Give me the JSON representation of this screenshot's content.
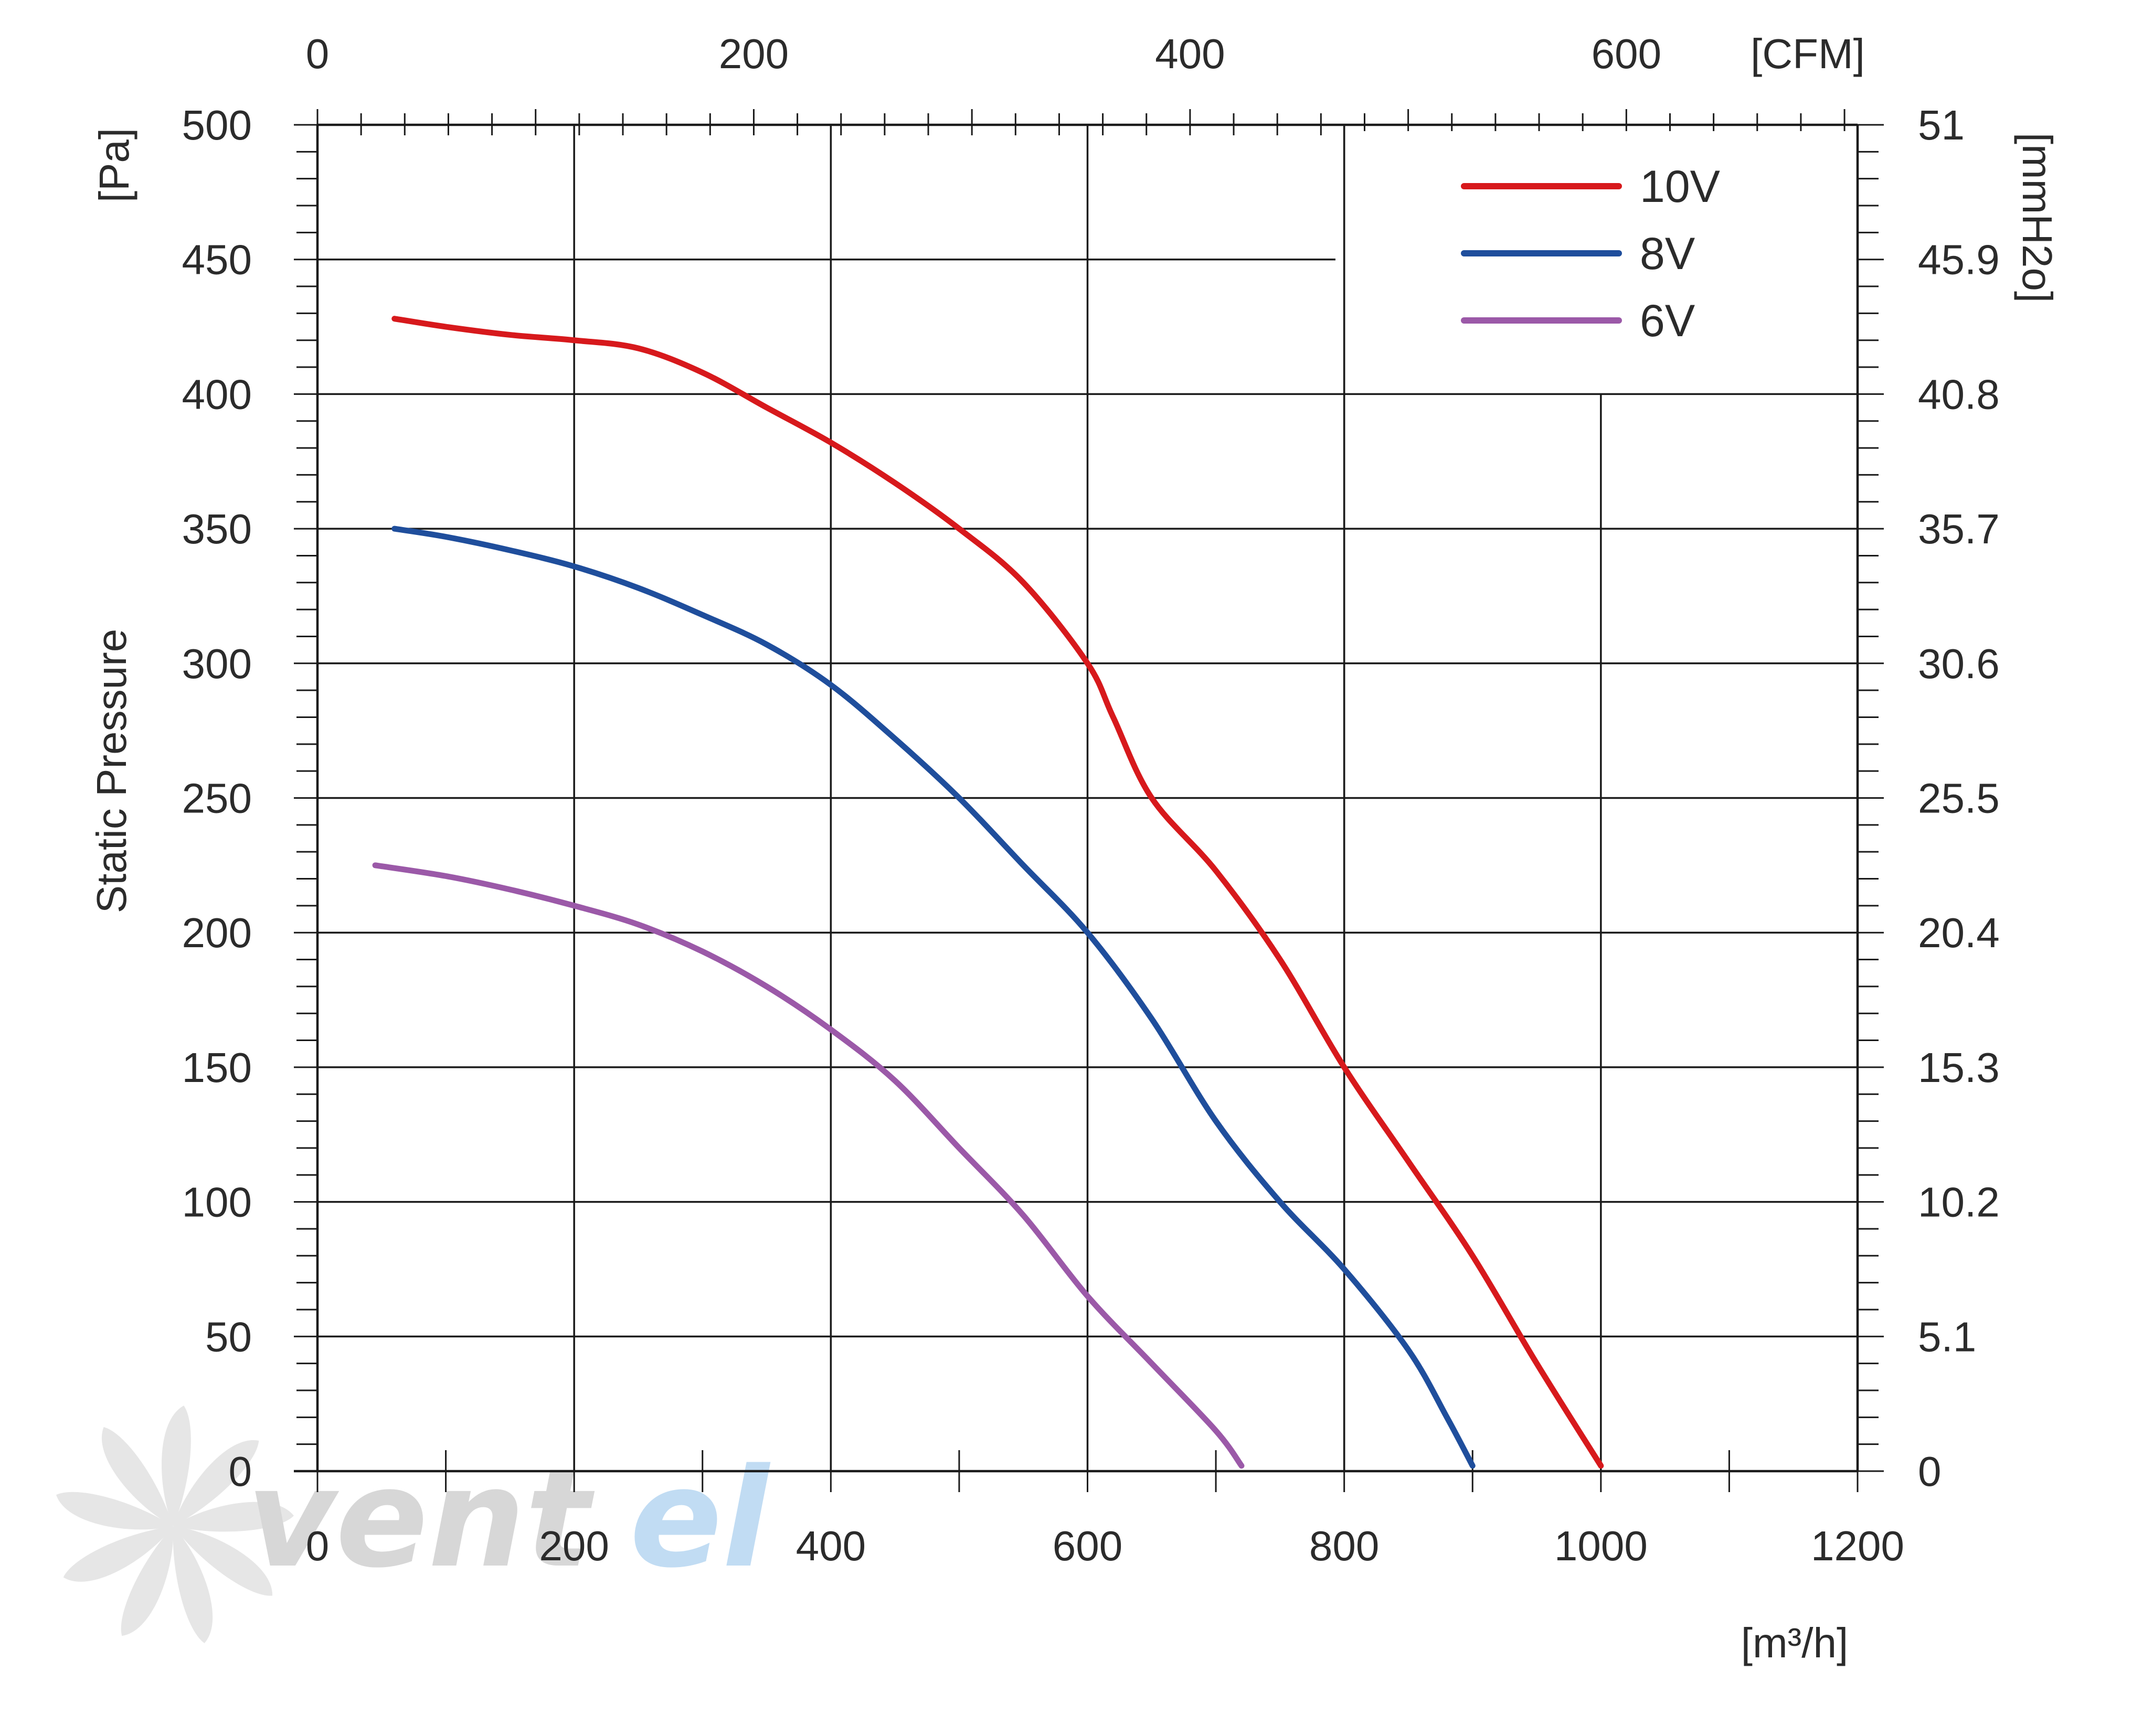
{
  "chart_data": {
    "type": "line",
    "ylabel": "Static Pressure",
    "x_unit": "[m³/h]",
    "x2_unit": "[CFM]",
    "y_unit": "[Pa]",
    "y2_unit": "[mmH2o]",
    "xlim": [
      0,
      1200
    ],
    "ylim": [
      0,
      500
    ],
    "x2lim": [
      0,
      706
    ],
    "grid": true,
    "legend_position": "top-right",
    "x_ticks": [
      "0",
      "200",
      "400",
      "600",
      "800",
      "1000",
      "1200"
    ],
    "x2_ticks": [
      {
        "label": "0",
        "value": 0
      },
      {
        "label": "200",
        "value": 200
      },
      {
        "label": "400",
        "value": 400
      },
      {
        "label": "600",
        "value": 600
      }
    ],
    "y_ticks": [
      "0",
      "50",
      "100",
      "150",
      "200",
      "250",
      "300",
      "350",
      "400",
      "450",
      "500"
    ],
    "y2_ticks": [
      "0",
      "5.1",
      "10.2",
      "15.3",
      "20.4",
      "25.5",
      "30.6",
      "35.7",
      "40.8",
      "45.9",
      "51"
    ],
    "series": [
      {
        "name": "10V",
        "color": "#d7191c",
        "x": [
          60,
          100,
          150,
          200,
          250,
          300,
          350,
          400,
          450,
          500,
          550,
          600,
          620,
          650,
          700,
          750,
          800,
          850,
          900,
          950,
          1000
        ],
        "y": [
          428,
          425,
          422,
          420,
          417,
          408,
          395,
          382,
          367,
          350,
          330,
          300,
          280,
          250,
          223,
          190,
          150,
          115,
          80,
          40,
          2
        ]
      },
      {
        "name": "8V",
        "color": "#1f4e9c",
        "x": [
          60,
          100,
          150,
          200,
          250,
          300,
          350,
          400,
          450,
          500,
          550,
          600,
          650,
          700,
          750,
          800,
          850,
          880,
          900
        ],
        "y": [
          350,
          347,
          342,
          336,
          328,
          318,
          307,
          292,
          272,
          250,
          225,
          200,
          168,
          130,
          100,
          75,
          45,
          20,
          2
        ]
      },
      {
        "name": "6V",
        "color": "#9b59a8",
        "x": [
          45,
          100,
          150,
          200,
          250,
          300,
          350,
          400,
          450,
          500,
          550,
          600,
          650,
          700,
          720
        ],
        "y": [
          225,
          221,
          216,
          210,
          203,
          193,
          180,
          164,
          145,
          120,
          95,
          65,
          40,
          15,
          2
        ]
      }
    ]
  },
  "watermark": {
    "text": "ventel",
    "colors": [
      "#c8c8c8",
      "#7fb6e6"
    ]
  }
}
